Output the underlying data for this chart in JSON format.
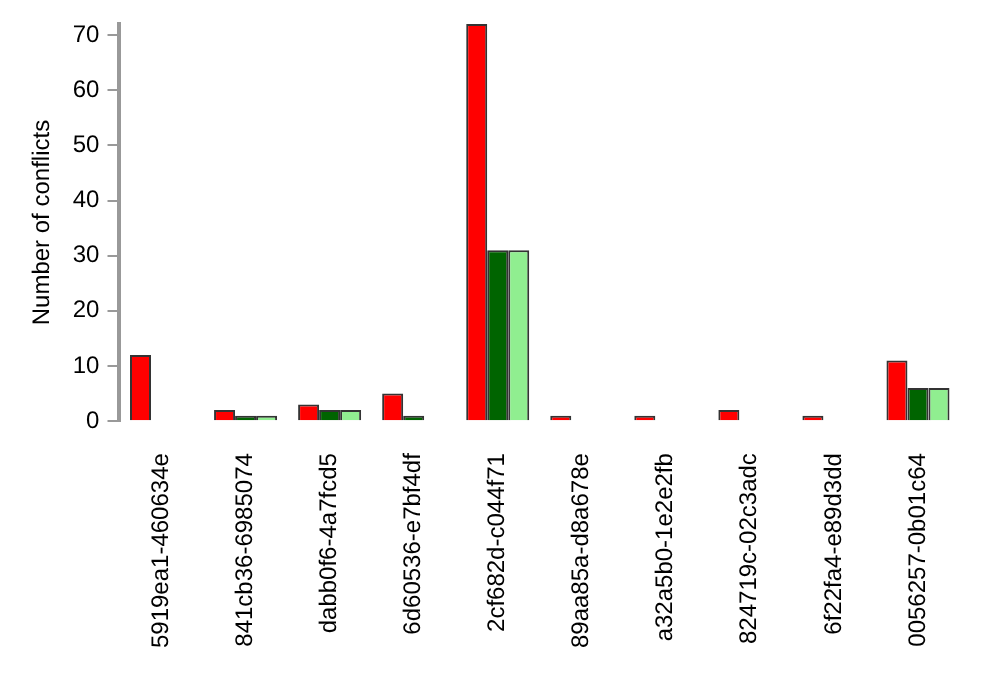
{
  "chart_data": {
    "type": "bar",
    "ylabel": "Number of conflicts",
    "categories": [
      "5919ea1-460634e",
      "841cb36-6985074",
      "dabb0f6-4a7fcd5",
      "6d60536-e7bf4df",
      "2cf682d-c044f71",
      "89aa85a-d8a678e",
      "a32a5b0-1e2e2fb",
      "824719c-02c3adc",
      "6f22fa4-e89d3dd",
      "0056257-0b01c64"
    ],
    "series": [
      {
        "color": "#ff0000",
        "values": [
          12,
          2,
          3,
          5,
          72,
          1,
          1,
          2,
          1,
          11
        ]
      },
      {
        "color": "#006400",
        "values": [
          0,
          1,
          2,
          1,
          31,
          0,
          0,
          0,
          0,
          6
        ]
      },
      {
        "color": "#90ee90",
        "values": [
          0,
          1,
          2,
          0,
          31,
          0,
          0,
          0,
          0,
          6
        ]
      }
    ],
    "ylim": [
      0,
      72
    ],
    "yticks": [
      0,
      10,
      20,
      30,
      40,
      50,
      60,
      70
    ],
    "grid": false,
    "legend": false
  }
}
